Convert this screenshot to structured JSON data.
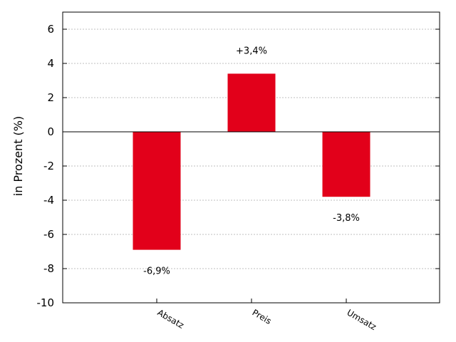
{
  "chart_data": {
    "type": "bar",
    "title": "",
    "xlabel": "",
    "ylabel": "in Prozent (%)",
    "categories": [
      "Absatz",
      "Preis",
      "Umsatz"
    ],
    "values": [
      -6.9,
      3.4,
      -3.8
    ],
    "data_labels": [
      "-6,9%",
      "+3,4%",
      "-3,8%"
    ],
    "ylim": [
      -10,
      7
    ],
    "yticks": [
      -10,
      -8,
      -6,
      -4,
      -2,
      0,
      2,
      4,
      6
    ],
    "grid": true,
    "bar_color": "#e2001a",
    "legend": "none"
  }
}
